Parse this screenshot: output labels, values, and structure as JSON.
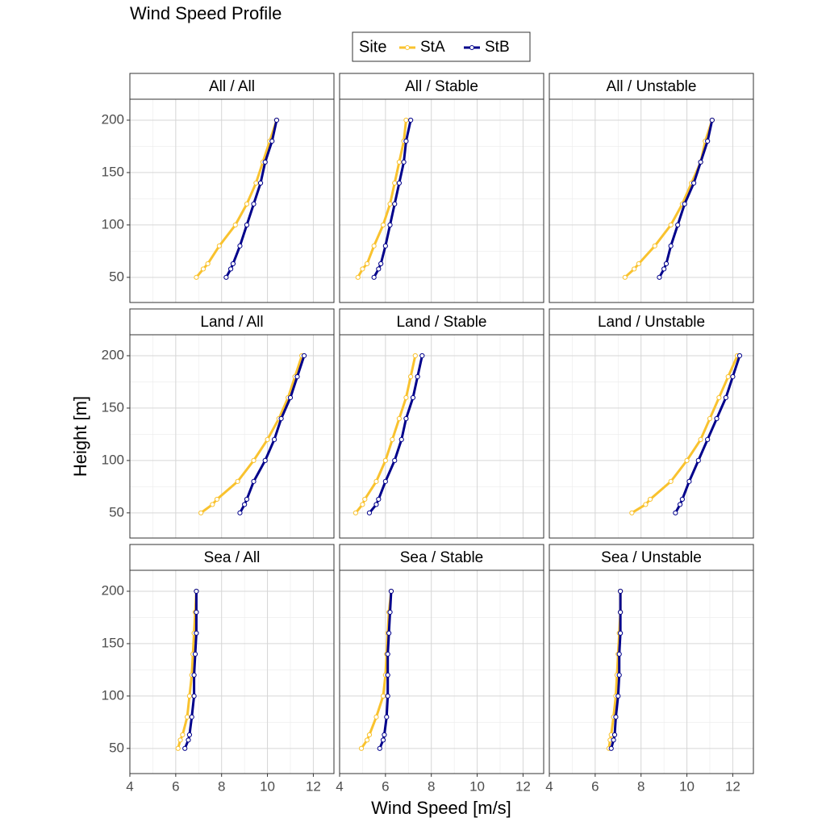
{
  "title": "Wind Speed Profile",
  "x_label": "Wind Speed  [m/s]",
  "y_label": "Height  [m]",
  "legend": {
    "title": "Site",
    "names": [
      "StA",
      "StB"
    ],
    "colors": [
      "#f9c22e",
      "#00008b"
    ]
  },
  "chart_data": [
    {
      "type": "line",
      "title": "All / All",
      "y": [
        50,
        58,
        63,
        80,
        100,
        120,
        140,
        160,
        180,
        200
      ],
      "series": [
        {
          "x": [
            6.9,
            7.2,
            7.4,
            7.9,
            8.6,
            9.1,
            9.5,
            9.8,
            10.1,
            10.4
          ]
        },
        {
          "x": [
            8.2,
            8.4,
            8.5,
            8.8,
            9.1,
            9.4,
            9.7,
            9.9,
            10.2,
            10.4
          ]
        }
      ],
      "xlim": [
        4,
        12.9
      ],
      "xticks": [
        4,
        6,
        8,
        10,
        12
      ],
      "ylim": [
        26,
        220
      ],
      "yticks": [
        50,
        100,
        150,
        200
      ],
      "grid": true
    },
    {
      "type": "line",
      "title": "All / Stable",
      "y": [
        50,
        58,
        63,
        80,
        100,
        120,
        140,
        160,
        180,
        200
      ],
      "series": [
        {
          "x": [
            4.8,
            5.0,
            5.2,
            5.5,
            5.9,
            6.2,
            6.4,
            6.6,
            6.8,
            6.9
          ]
        },
        {
          "x": [
            5.5,
            5.7,
            5.8,
            6.0,
            6.2,
            6.4,
            6.6,
            6.8,
            6.9,
            7.1
          ]
        }
      ],
      "xlim": [
        4,
        12.9
      ],
      "xticks": [
        4,
        6,
        8,
        10,
        12
      ],
      "ylim": [
        26,
        220
      ],
      "yticks": [
        50,
        100,
        150,
        200
      ],
      "grid": true
    },
    {
      "type": "line",
      "title": "All / Unstable",
      "y": [
        50,
        58,
        63,
        80,
        100,
        120,
        140,
        160,
        180,
        200
      ],
      "series": [
        {
          "x": [
            7.3,
            7.7,
            7.9,
            8.6,
            9.3,
            9.8,
            10.2,
            10.6,
            10.8,
            11.1
          ]
        },
        {
          "x": [
            8.8,
            9.0,
            9.1,
            9.3,
            9.6,
            9.9,
            10.3,
            10.6,
            10.9,
            11.1
          ]
        }
      ],
      "xlim": [
        4,
        12.9
      ],
      "xticks": [
        4,
        6,
        8,
        10,
        12
      ],
      "ylim": [
        26,
        220
      ],
      "yticks": [
        50,
        100,
        150,
        200
      ],
      "grid": true
    },
    {
      "type": "line",
      "title": "Land / All",
      "y": [
        50,
        58,
        63,
        80,
        100,
        120,
        140,
        160,
        180,
        200
      ],
      "series": [
        {
          "x": [
            7.1,
            7.6,
            7.8,
            8.7,
            9.4,
            10.0,
            10.5,
            10.9,
            11.2,
            11.5
          ]
        },
        {
          "x": [
            8.8,
            9.0,
            9.1,
            9.4,
            9.9,
            10.3,
            10.6,
            11.0,
            11.3,
            11.6
          ]
        }
      ],
      "xlim": [
        4,
        12.9
      ],
      "xticks": [
        4,
        6,
        8,
        10,
        12
      ],
      "ylim": [
        26,
        220
      ],
      "yticks": [
        50,
        100,
        150,
        200
      ],
      "grid": true
    },
    {
      "type": "line",
      "title": "Land / Stable",
      "y": [
        50,
        58,
        63,
        80,
        100,
        120,
        140,
        160,
        180,
        200
      ],
      "series": [
        {
          "x": [
            4.7,
            5.0,
            5.1,
            5.6,
            6.0,
            6.3,
            6.6,
            6.9,
            7.1,
            7.3
          ]
        },
        {
          "x": [
            5.3,
            5.6,
            5.7,
            6.0,
            6.4,
            6.7,
            6.9,
            7.2,
            7.4,
            7.6
          ]
        }
      ],
      "xlim": [
        4,
        12.9
      ],
      "xticks": [
        4,
        6,
        8,
        10,
        12
      ],
      "ylim": [
        26,
        220
      ],
      "yticks": [
        50,
        100,
        150,
        200
      ],
      "grid": true
    },
    {
      "type": "line",
      "title": "Land / Unstable",
      "y": [
        50,
        58,
        63,
        80,
        100,
        120,
        140,
        160,
        180,
        200
      ],
      "series": [
        {
          "x": [
            7.6,
            8.2,
            8.4,
            9.3,
            10.0,
            10.6,
            11.0,
            11.4,
            11.8,
            12.2
          ]
        },
        {
          "x": [
            9.5,
            9.7,
            9.8,
            10.1,
            10.5,
            10.9,
            11.3,
            11.7,
            12.0,
            12.3
          ]
        }
      ],
      "xlim": [
        4,
        12.9
      ],
      "xticks": [
        4,
        6,
        8,
        10,
        12
      ],
      "ylim": [
        26,
        220
      ],
      "yticks": [
        50,
        100,
        150,
        200
      ],
      "grid": true
    },
    {
      "type": "line",
      "title": "Sea / All",
      "y": [
        50,
        58,
        63,
        80,
        100,
        120,
        140,
        160,
        180,
        200
      ],
      "series": [
        {
          "x": [
            6.1,
            6.2,
            6.3,
            6.5,
            6.6,
            6.7,
            6.75,
            6.8,
            6.85,
            6.9
          ]
        },
        {
          "x": [
            6.4,
            6.55,
            6.6,
            6.7,
            6.8,
            6.8,
            6.85,
            6.9,
            6.9,
            6.9
          ]
        }
      ],
      "xlim": [
        4,
        12.9
      ],
      "xticks": [
        4,
        6,
        8,
        10,
        12
      ],
      "ylim": [
        26,
        220
      ],
      "yticks": [
        50,
        100,
        150,
        200
      ],
      "grid": true
    },
    {
      "type": "line",
      "title": "Sea / Stable",
      "y": [
        50,
        58,
        63,
        80,
        100,
        120,
        140,
        160,
        180,
        200
      ],
      "series": [
        {
          "x": [
            4.95,
            5.2,
            5.3,
            5.6,
            5.9,
            6.0,
            6.05,
            6.1,
            6.15,
            6.25
          ]
        },
        {
          "x": [
            5.75,
            5.9,
            5.95,
            6.05,
            6.1,
            6.1,
            6.1,
            6.15,
            6.2,
            6.25
          ]
        }
      ],
      "xlim": [
        4,
        12.9
      ],
      "xticks": [
        4,
        6,
        8,
        10,
        12
      ],
      "ylim": [
        26,
        220
      ],
      "yticks": [
        50,
        100,
        150,
        200
      ],
      "grid": true
    },
    {
      "type": "line",
      "title": "Sea / Unstable",
      "y": [
        50,
        58,
        63,
        80,
        100,
        120,
        140,
        160,
        180,
        200
      ],
      "series": [
        {
          "x": [
            6.6,
            6.65,
            6.7,
            6.8,
            6.9,
            6.95,
            7.0,
            7.05,
            7.1,
            7.1
          ]
        },
        {
          "x": [
            6.7,
            6.8,
            6.85,
            6.9,
            7.0,
            7.05,
            7.05,
            7.1,
            7.1,
            7.1
          ]
        }
      ],
      "xlim": [
        4,
        12.9
      ],
      "xticks": [
        4,
        6,
        8,
        10,
        12
      ],
      "ylim": [
        26,
        220
      ],
      "yticks": [
        50,
        100,
        150,
        200
      ],
      "grid": true
    }
  ]
}
